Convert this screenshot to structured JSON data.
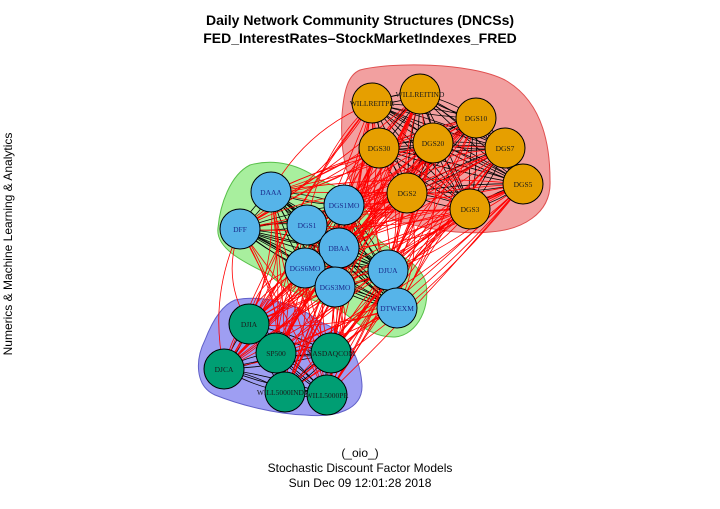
{
  "title": {
    "line1": "Daily Network Community Structures (DNCSs)",
    "line2": "FED_InterestRates–StockMarketIndexes_FRED"
  },
  "side_label": "Numerics & Machine Learning & Analytics",
  "footer": {
    "line1": "(_oio_)",
    "line2": "Stochastic Discount Factor Models",
    "line3": "Sun Dec 09 12:01:28 2018"
  },
  "colors": {
    "interest_rates": "#e69f00",
    "fed_rates": "#56b4e9",
    "stock_indexes": "#009e73",
    "hull_red": "#f2a0a0",
    "hull_green": "#a8ef9e",
    "hull_blue": "#9e9ef2",
    "cross_edge": "#ff0000",
    "intra_edge": "#000000"
  },
  "communities": [
    {
      "id": "red",
      "color_key": "interest_rates",
      "hull_key": "hull_red",
      "nodes": [
        "WILLREITIND",
        "WILLREITPR",
        "DGS10",
        "DGS20",
        "DGS30",
        "DGS7",
        "DGS5",
        "DGS2",
        "DGS3"
      ]
    },
    {
      "id": "green",
      "color_key": "fed_rates",
      "hull_key": "hull_green",
      "nodes": [
        "DAAA",
        "DFF",
        "DGS1MO",
        "DGS1",
        "DBAA",
        "DGS6MO",
        "DJUA",
        "DGS3MO",
        "DTWEXM"
      ]
    },
    {
      "id": "blue",
      "color_key": "stock_indexes",
      "hull_key": "hull_blue",
      "nodes": [
        "DJIA",
        "SP500",
        "NASDAQCOM",
        "DJCA",
        "WILL5000INDFC",
        "WILL5000PR"
      ]
    }
  ]
}
